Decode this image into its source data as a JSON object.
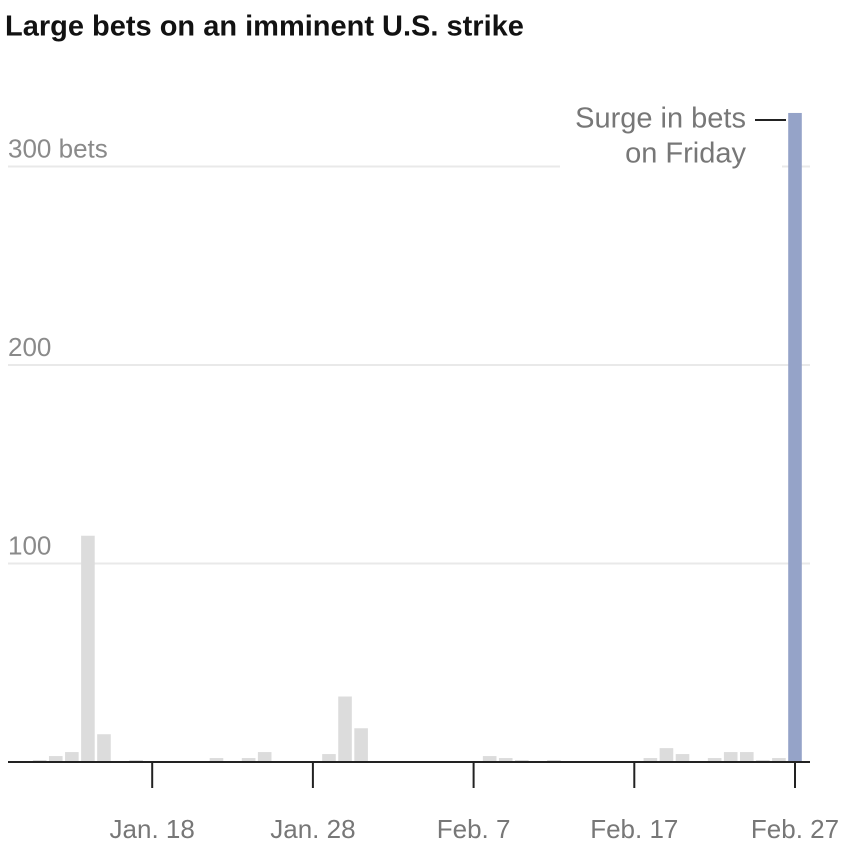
{
  "chart_data": {
    "type": "bar",
    "title": "Large bets on an imminent U.S. strike",
    "categories": [
      null,
      null,
      null,
      null,
      null,
      null,
      null,
      null,
      "Jan. 18",
      null,
      null,
      null,
      null,
      null,
      null,
      null,
      null,
      null,
      "Jan. 28",
      null,
      null,
      null,
      null,
      null,
      null,
      null,
      null,
      null,
      "Feb. 7",
      null,
      null,
      null,
      null,
      null,
      null,
      null,
      null,
      null,
      "Feb. 17",
      null,
      null,
      null,
      null,
      null,
      null,
      null,
      null,
      null,
      "Feb. 27"
    ],
    "values": [
      0,
      1,
      3,
      5,
      114,
      14,
      0,
      1,
      0,
      0,
      0,
      0,
      2,
      0,
      2,
      5,
      0,
      0,
      0,
      4,
      33,
      17,
      0,
      0,
      0,
      0,
      0,
      0,
      0,
      3,
      2,
      1,
      0,
      1,
      0,
      0,
      0,
      0,
      0,
      2,
      7,
      4,
      0,
      2,
      5,
      5,
      1,
      2,
      327
    ],
    "colors": [
      "#dcdcdc",
      "#dcdcdc",
      "#dcdcdc",
      "#dcdcdc",
      "#dcdcdc",
      "#dcdcdc",
      "#dcdcdc",
      "#dcdcdc",
      "#dcdcdc",
      "#dcdcdc",
      "#dcdcdc",
      "#dcdcdc",
      "#dcdcdc",
      "#dcdcdc",
      "#dcdcdc",
      "#dcdcdc",
      "#dcdcdc",
      "#dcdcdc",
      "#dcdcdc",
      "#dcdcdc",
      "#dcdcdc",
      "#dcdcdc",
      "#dcdcdc",
      "#dcdcdc",
      "#dcdcdc",
      "#dcdcdc",
      "#dcdcdc",
      "#dcdcdc",
      "#dcdcdc",
      "#dcdcdc",
      "#dcdcdc",
      "#dcdcdc",
      "#dcdcdc",
      "#dcdcdc",
      "#dcdcdc",
      "#dcdcdc",
      "#dcdcdc",
      "#dcdcdc",
      "#dcdcdc",
      "#dcdcdc",
      "#dcdcdc",
      "#dcdcdc",
      "#dcdcdc",
      "#dcdcdc",
      "#dcdcdc",
      "#dcdcdc",
      "#dcdcdc",
      "#dcdcdc",
      "#95a3c8"
    ],
    "ylim": [
      0,
      330
    ],
    "yticks": [
      100,
      200,
      {
        "value": 300,
        "label": "300 bets"
      }
    ],
    "grid": true,
    "annotation": [
      "Surge in bets",
      "on Friday"
    ]
  }
}
